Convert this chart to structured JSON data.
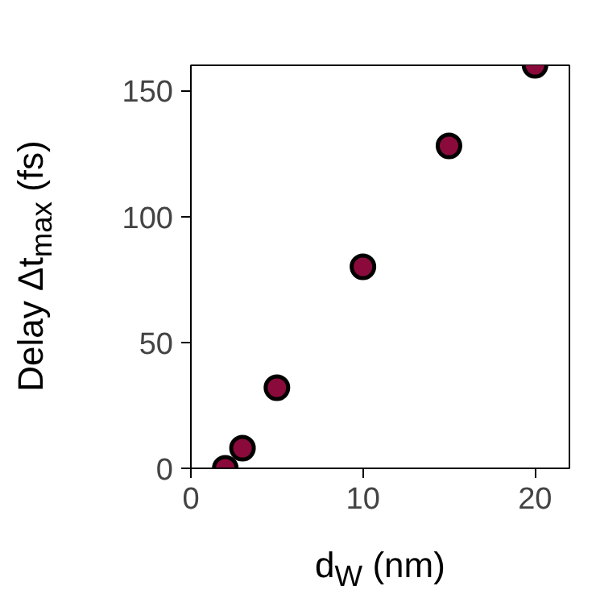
{
  "chart_data": {
    "type": "scatter",
    "xlabel": "d$_{W}$ (nm)",
    "ylabel": "Delay Δt$_{max}$ (fs)",
    "x": [
      2,
      3,
      5,
      10,
      15,
      20
    ],
    "series": [
      {
        "color": "#8b0a3c",
        "values": [
          0,
          8,
          32,
          80,
          128,
          160
        ]
      }
    ],
    "xlim": [
      0,
      22
    ],
    "ylim": [
      0,
      160
    ],
    "xticks": [
      0,
      10,
      20
    ],
    "yticks": [
      0,
      50,
      100,
      150
    ],
    "marker": "circle",
    "grid": false
  }
}
